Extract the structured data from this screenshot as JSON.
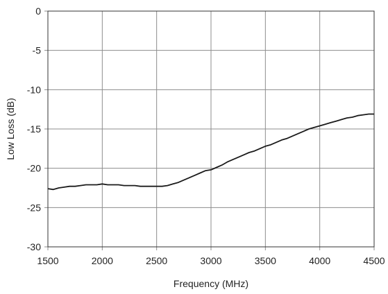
{
  "chart_data": {
    "type": "line",
    "title": "",
    "xlabel": "Frequency (MHz)",
    "ylabel": "Low Loss (dB)",
    "xlim": [
      1500,
      4500
    ],
    "ylim": [
      -30,
      0
    ],
    "x_ticks": [
      1500,
      2000,
      2500,
      3000,
      3500,
      4000,
      4500
    ],
    "y_ticks": [
      0,
      -5,
      -10,
      -15,
      -20,
      -25,
      -30
    ],
    "x_tick_labels": [
      "1500",
      "2000",
      "2500",
      "3000",
      "3500",
      "4000",
      "4500"
    ],
    "y_tick_labels": [
      "0",
      "-5",
      "-10",
      "-15",
      "-20",
      "-25",
      "-30"
    ],
    "grid": true,
    "legend": "none",
    "line_color": "#1a1a1a",
    "series": [
      {
        "x": [
          1500,
          1550,
          1600,
          1650,
          1700,
          1750,
          1800,
          1850,
          1900,
          1950,
          2000,
          2050,
          2100,
          2150,
          2200,
          2250,
          2300,
          2350,
          2400,
          2450,
          2500,
          2550,
          2600,
          2650,
          2700,
          2750,
          2800,
          2850,
          2900,
          2950,
          3000,
          3050,
          3100,
          3150,
          3200,
          3250,
          3300,
          3350,
          3400,
          3450,
          3500,
          3550,
          3600,
          3650,
          3700,
          3750,
          3800,
          3850,
          3900,
          3950,
          4000,
          4050,
          4100,
          4150,
          4200,
          4250,
          4300,
          4350,
          4400,
          4450,
          4500
        ],
        "y": [
          -22.6,
          -22.7,
          -22.5,
          -22.4,
          -22.3,
          -22.3,
          -22.2,
          -22.1,
          -22.1,
          -22.1,
          -22.0,
          -22.1,
          -22.1,
          -22.1,
          -22.2,
          -22.2,
          -22.2,
          -22.3,
          -22.3,
          -22.3,
          -22.3,
          -22.3,
          -22.2,
          -22.0,
          -21.8,
          -21.5,
          -21.2,
          -20.9,
          -20.6,
          -20.3,
          -20.2,
          -19.9,
          -19.6,
          -19.2,
          -18.9,
          -18.6,
          -18.3,
          -18.0,
          -17.8,
          -17.5,
          -17.2,
          -17.0,
          -16.7,
          -16.4,
          -16.2,
          -15.9,
          -15.6,
          -15.3,
          -15.0,
          -14.8,
          -14.6,
          -14.4,
          -14.2,
          -14.0,
          -13.8,
          -13.6,
          -13.5,
          -13.3,
          -13.2,
          -13.1,
          -13.1
        ]
      }
    ]
  }
}
